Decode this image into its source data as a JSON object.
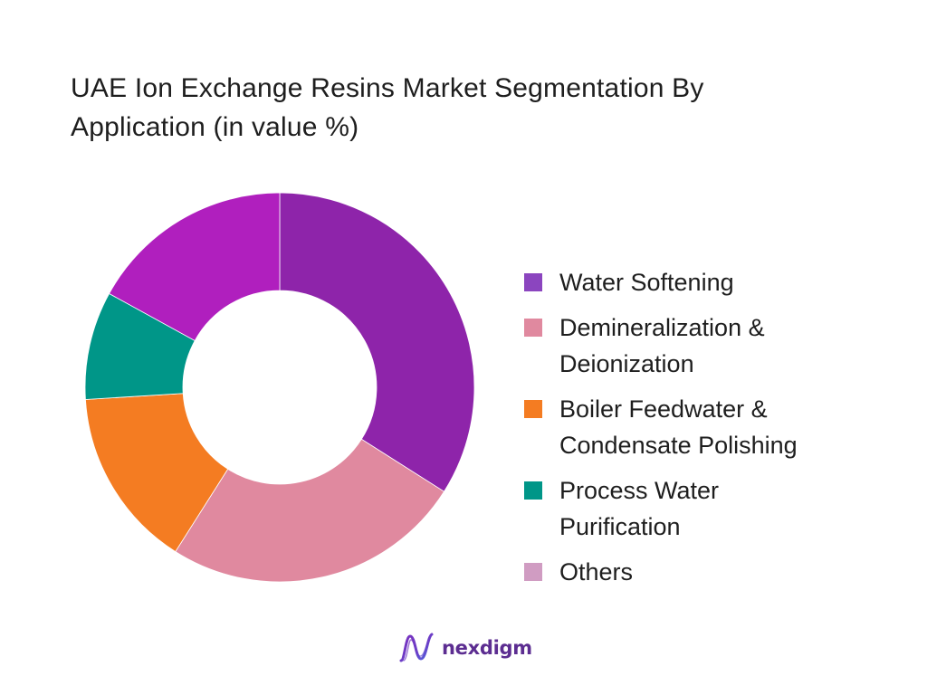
{
  "chart_data": {
    "type": "pie",
    "hole": true,
    "title": "UAE Ion Exchange Resins Market Segmentation By Application (in value %)",
    "categories": [
      "Water Softening",
      "Demineralization & Deionization",
      "Boiler Feedwater & Condensate Polishing",
      "Process Water Purification",
      "Others"
    ],
    "values": [
      34,
      25,
      15,
      9,
      17
    ],
    "slice_colors": [
      "#8e24aa",
      "#e0899f",
      "#f47c22",
      "#009688",
      "#b01fbe"
    ],
    "legend_colors": [
      "#8b45bf",
      "#e0899f",
      "#f47c22",
      "#009688",
      "#d09cc2"
    ],
    "legend": "right"
  },
  "brand": {
    "logo_text": "nexdigm",
    "logo_icon": "wave-n-icon",
    "color": "#5c2d91"
  }
}
